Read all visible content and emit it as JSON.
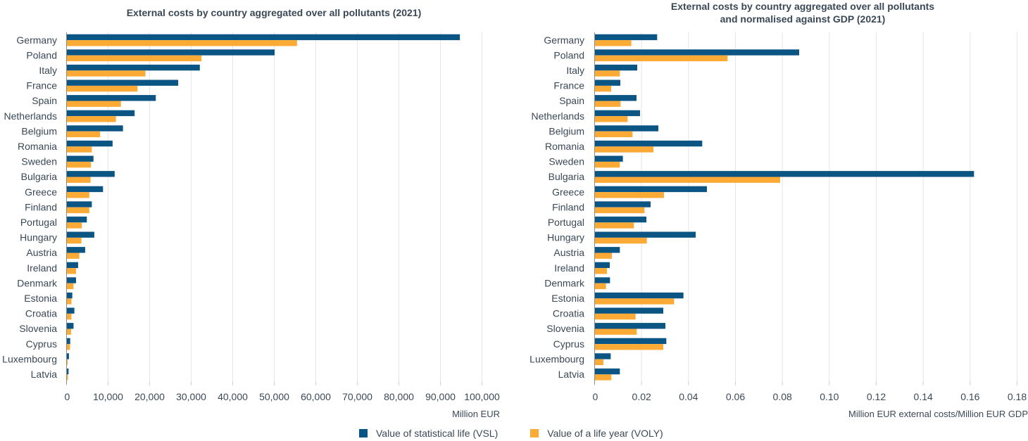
{
  "colors": {
    "vsl": "#0b5585",
    "voly": "#fbab35",
    "text": "#3a4856",
    "grid": "#e6e6e6",
    "axis": "#8a8a8a"
  },
  "legend": [
    {
      "key": "vsl",
      "label": "Value of statistical life (VSL)"
    },
    {
      "key": "voly",
      "label": "Value of a life year (VOLY)"
    }
  ],
  "chart_data": [
    {
      "type": "bar",
      "orientation": "horizontal",
      "title": "External costs by country aggregated over all pollutants (2021)",
      "xlabel": "Million EUR",
      "ylabel": "",
      "xlim": [
        0,
        100000
      ],
      "xticks": [
        0,
        10000,
        20000,
        30000,
        40000,
        50000,
        60000,
        70000,
        80000,
        90000,
        100000
      ],
      "xtick_labels": [
        "0",
        "10,000",
        "20,000",
        "30,000",
        "40,000",
        "50,000",
        "60,000",
        "70,000",
        "80,000",
        "90,000",
        "100,000"
      ],
      "grid": true,
      "legend_position": "bottom-center",
      "categories": [
        "Germany",
        "Poland",
        "Italy",
        "France",
        "Spain",
        "Netherlands",
        "Belgium",
        "Romania",
        "Sweden",
        "Bulgaria",
        "Greece",
        "Finland",
        "Portugal",
        "Hungary",
        "Austria",
        "Ireland",
        "Denmark",
        "Estonia",
        "Croatia",
        "Slovenia",
        "Cyprus",
        "Luxembourg",
        "Latvia"
      ],
      "series": [
        {
          "name": "Value of statistical life (VSL)",
          "key": "vsl",
          "values": [
            94600,
            50000,
            32000,
            26800,
            21400,
            16300,
            13500,
            11000,
            6400,
            11500,
            8700,
            6000,
            4800,
            6600,
            4400,
            2700,
            2200,
            1300,
            1800,
            1600,
            800,
            500,
            400
          ]
        },
        {
          "name": "Value of a life year (VOLY)",
          "key": "voly",
          "values": [
            55400,
            32400,
            18900,
            17000,
            13000,
            11800,
            8000,
            6000,
            5800,
            5700,
            5400,
            5400,
            3600,
            3500,
            3000,
            2200,
            1600,
            1100,
            1100,
            1000,
            750,
            200,
            250
          ]
        }
      ]
    },
    {
      "type": "bar",
      "orientation": "horizontal",
      "title": "External costs by country aggregated over all pollutants\nand normalised against GDP (2021)",
      "xlabel": "Million EUR external costs/Million EUR GDP",
      "ylabel": "",
      "xlim": [
        0,
        0.18
      ],
      "xticks": [
        0,
        0.02,
        0.04,
        0.06,
        0.08,
        0.1,
        0.12,
        0.14,
        0.16,
        0.18
      ],
      "xtick_labels": [
        "0",
        "0.02",
        "0.04",
        "0.06",
        "0.08",
        "0.10",
        "0.12",
        "0.14",
        "0.16",
        "0.18"
      ],
      "grid": true,
      "legend_position": "bottom-center",
      "categories": [
        "Germany",
        "Poland",
        "Italy",
        "France",
        "Spain",
        "Netherlands",
        "Belgium",
        "Romania",
        "Sweden",
        "Bulgaria",
        "Greece",
        "Finland",
        "Portugal",
        "Hungary",
        "Austria",
        "Ireland",
        "Denmark",
        "Estonia",
        "Croatia",
        "Slovenia",
        "Cyprus",
        "Luxembourg",
        "Latvia"
      ],
      "series": [
        {
          "name": "Value of statistical life (VSL)",
          "key": "vsl",
          "values": [
            0.0265,
            0.087,
            0.018,
            0.0108,
            0.0177,
            0.0192,
            0.027,
            0.0457,
            0.0119,
            0.1615,
            0.0477,
            0.0237,
            0.0219,
            0.0429,
            0.0106,
            0.0063,
            0.0064,
            0.0377,
            0.0291,
            0.03,
            0.0304,
            0.0067,
            0.0106
          ]
        },
        {
          "name": "Value of a life year (VOLY)",
          "key": "voly",
          "values": [
            0.0155,
            0.0565,
            0.0106,
            0.0069,
            0.0109,
            0.0139,
            0.016,
            0.0249,
            0.0106,
            0.0789,
            0.0294,
            0.0211,
            0.0166,
            0.0221,
            0.0072,
            0.0051,
            0.0047,
            0.0337,
            0.0173,
            0.0178,
            0.0291,
            0.0036,
            0.007
          ]
        }
      ]
    }
  ]
}
